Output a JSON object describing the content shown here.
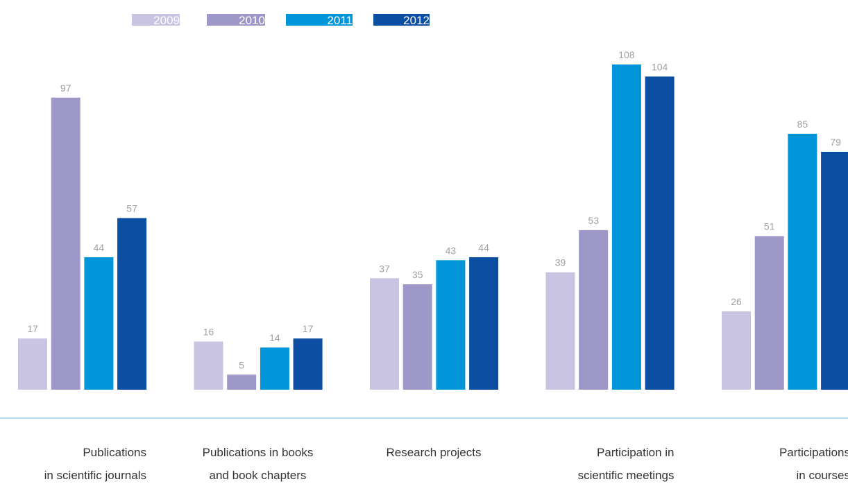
{
  "chart_data": {
    "type": "bar",
    "categories": [
      [
        "Publications",
        "in scientific journals"
      ],
      [
        "Publications in books",
        "and book chapters"
      ],
      [
        "Research projects"
      ],
      [
        "Participation in",
        "scientific meetings"
      ],
      [
        "Participations",
        "in  courses"
      ]
    ],
    "series": [
      {
        "name": "2009",
        "color": "#c8c4e2",
        "values": [
          17,
          16,
          37,
          39,
          26
        ]
      },
      {
        "name": "2010",
        "color": "#9e98c9",
        "values": [
          97,
          5,
          35,
          53,
          51
        ]
      },
      {
        "name": "2011",
        "color": "#0096d9",
        "values": [
          44,
          14,
          43,
          108,
          85
        ]
      },
      {
        "name": "2012",
        "color": "#0b4ea2",
        "values": [
          57,
          17,
          44,
          104,
          79
        ]
      }
    ]
  }
}
